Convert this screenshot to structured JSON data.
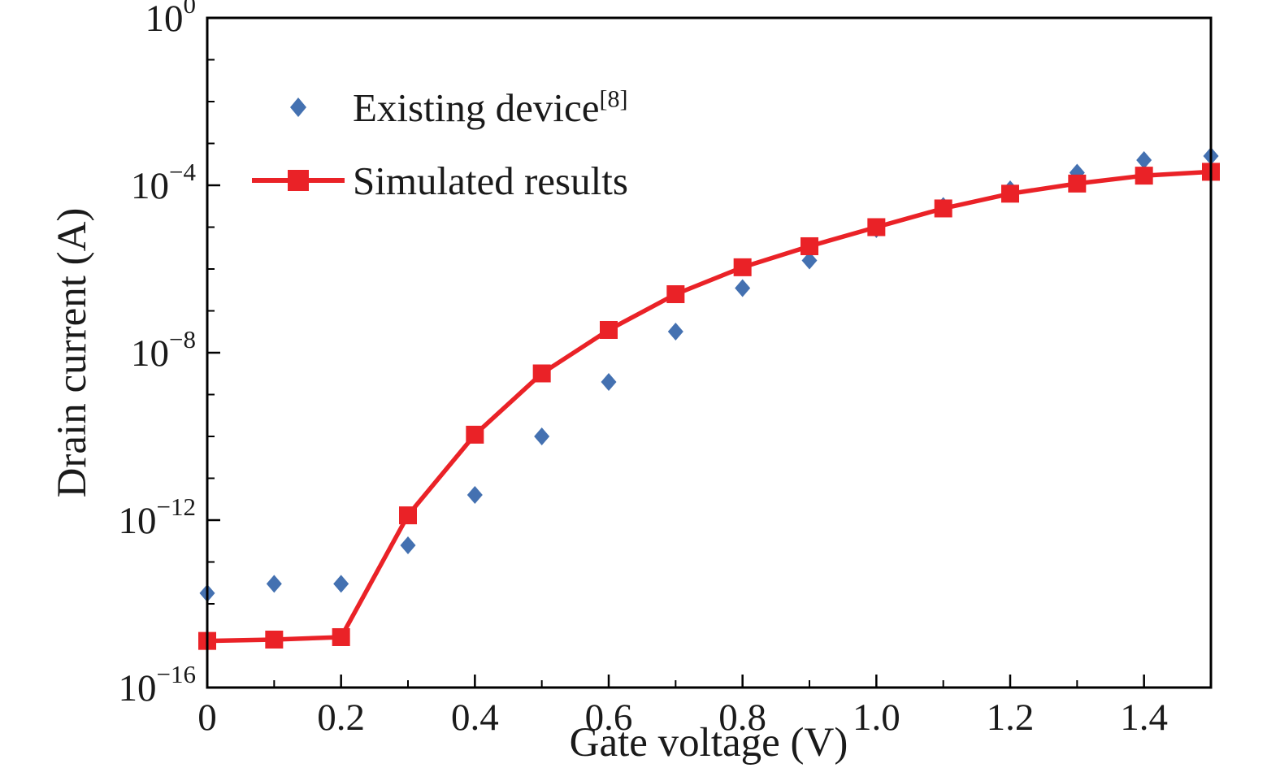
{
  "chart_data": {
    "type": "line",
    "title": "",
    "xlabel": "Gate voltage (V)",
    "ylabel": "Drain current (A)",
    "xlim": [
      0,
      1.5
    ],
    "ylim": [
      1e-16,
      1
    ],
    "ylog_range": [
      -16,
      0
    ],
    "x_major_ticks": [
      0,
      0.2,
      0.4,
      0.6,
      0.8,
      1.0,
      1.2,
      1.4
    ],
    "x_tick_labels": [
      "0",
      "0.2",
      "0.4",
      "0.6",
      "0.8",
      "1.0",
      "1.2",
      "1.4"
    ],
    "x_minor_step": 0.1,
    "y_major_tick_exponents": [
      0,
      -4,
      -8,
      -12,
      -16
    ],
    "y_tick_label_base": "10",
    "grid": false,
    "legend_position": "upper-left",
    "frame_color": "#000000",
    "x": [
      0,
      0.1,
      0.2,
      0.3,
      0.4,
      0.5,
      0.6,
      0.7,
      0.8,
      0.9,
      1.0,
      1.1,
      1.2,
      1.3,
      1.4,
      1.5
    ],
    "series": [
      {
        "name": "Existing device",
        "name_sup": "[8]",
        "marker": "diamond",
        "color": "#4471b1",
        "line": false,
        "y": [
          1.8e-14,
          3e-14,
          3e-14,
          2.5e-13,
          4e-12,
          1e-10,
          2e-09,
          3.2e-08,
          3.5e-07,
          1.6e-06,
          9e-06,
          3.2e-05,
          8e-05,
          0.0002,
          0.0004,
          0.0005
        ]
      },
      {
        "name": "Simulated results",
        "name_sup": "",
        "marker": "square",
        "color": "#ea2227",
        "line": true,
        "y": [
          1.3e-15,
          1.4e-15,
          1.6e-15,
          1.3e-12,
          1.1e-10,
          3.2e-09,
          3.5e-08,
          2.5e-07,
          1.1e-06,
          3.5e-06,
          1e-05,
          2.8e-05,
          6.3e-05,
          0.00011,
          0.00017,
          0.00021
        ]
      }
    ]
  }
}
